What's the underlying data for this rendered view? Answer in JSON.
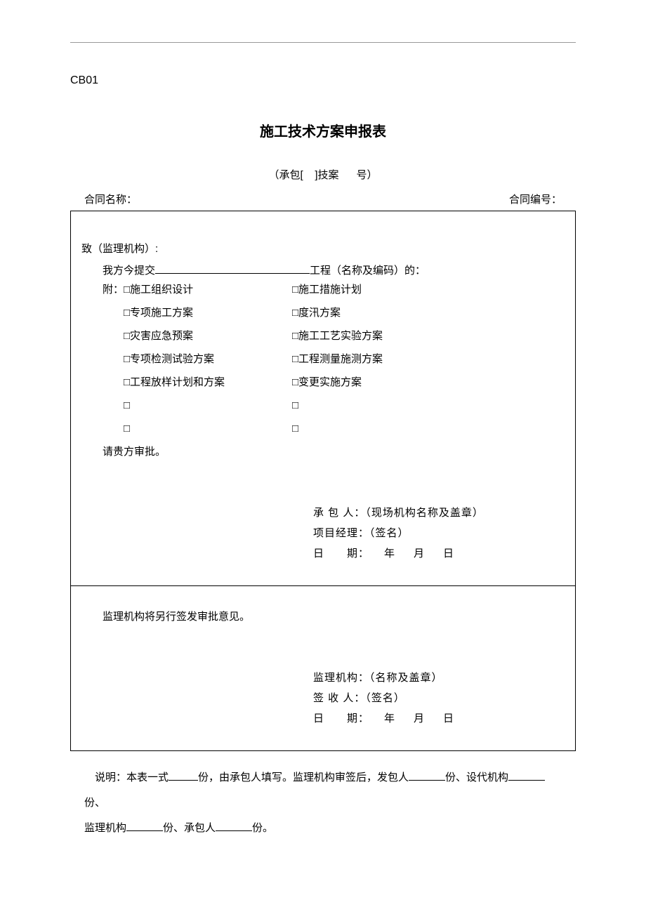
{
  "form_code": "CB01",
  "title": "施工技术方案申报表",
  "subtitle_prefix": "（承包[",
  "subtitle_mid": "]技案",
  "subtitle_suffix": "号）",
  "contract_name_label": "合同名称：",
  "contract_no_label": "合同编号：",
  "addressee": "致（监理机构）:",
  "submit_prefix": "我方今提交",
  "submit_suffix": "工程（名称及编码）的：",
  "attach_label": "附：",
  "options_left": [
    "□施工组织设计",
    "□专项施工方案",
    "□灾害应急预案",
    "□专项检测试验方案",
    "□工程放样计划和方案",
    "□",
    "□"
  ],
  "options_right": [
    "□施工措施计划",
    "□度汛方案",
    "□施工工艺实验方案",
    "□工程测量施测方案",
    "□变更实施方案",
    "□",
    "□"
  ],
  "approval_request": "请贵方审批。",
  "contractor_label": "承 包 人：",
  "contractor_hint": "（现场机构名称及盖章）",
  "pm_label": "项目经理：",
  "pm_hint": "（签名）",
  "date_label": "日  期：",
  "date_fields": " 年 月 日",
  "supervisor_note": "监理机构将另行签发审批意见。",
  "supervisor_label": "监理机构：",
  "supervisor_hint": "（名称及盖章）",
  "receiver_label": "签 收 人：",
  "receiver_hint": "（签名）",
  "explanation_p1_a": "说明：本表一式",
  "explanation_p1_b": "份，由承包人填写。监理机构审签后，发包人",
  "explanation_p1_c": "份、设代机构",
  "explanation_p1_d": "份、",
  "explanation_p2_a": "监理机构",
  "explanation_p2_b": "份、承包人",
  "explanation_p2_c": "份。"
}
